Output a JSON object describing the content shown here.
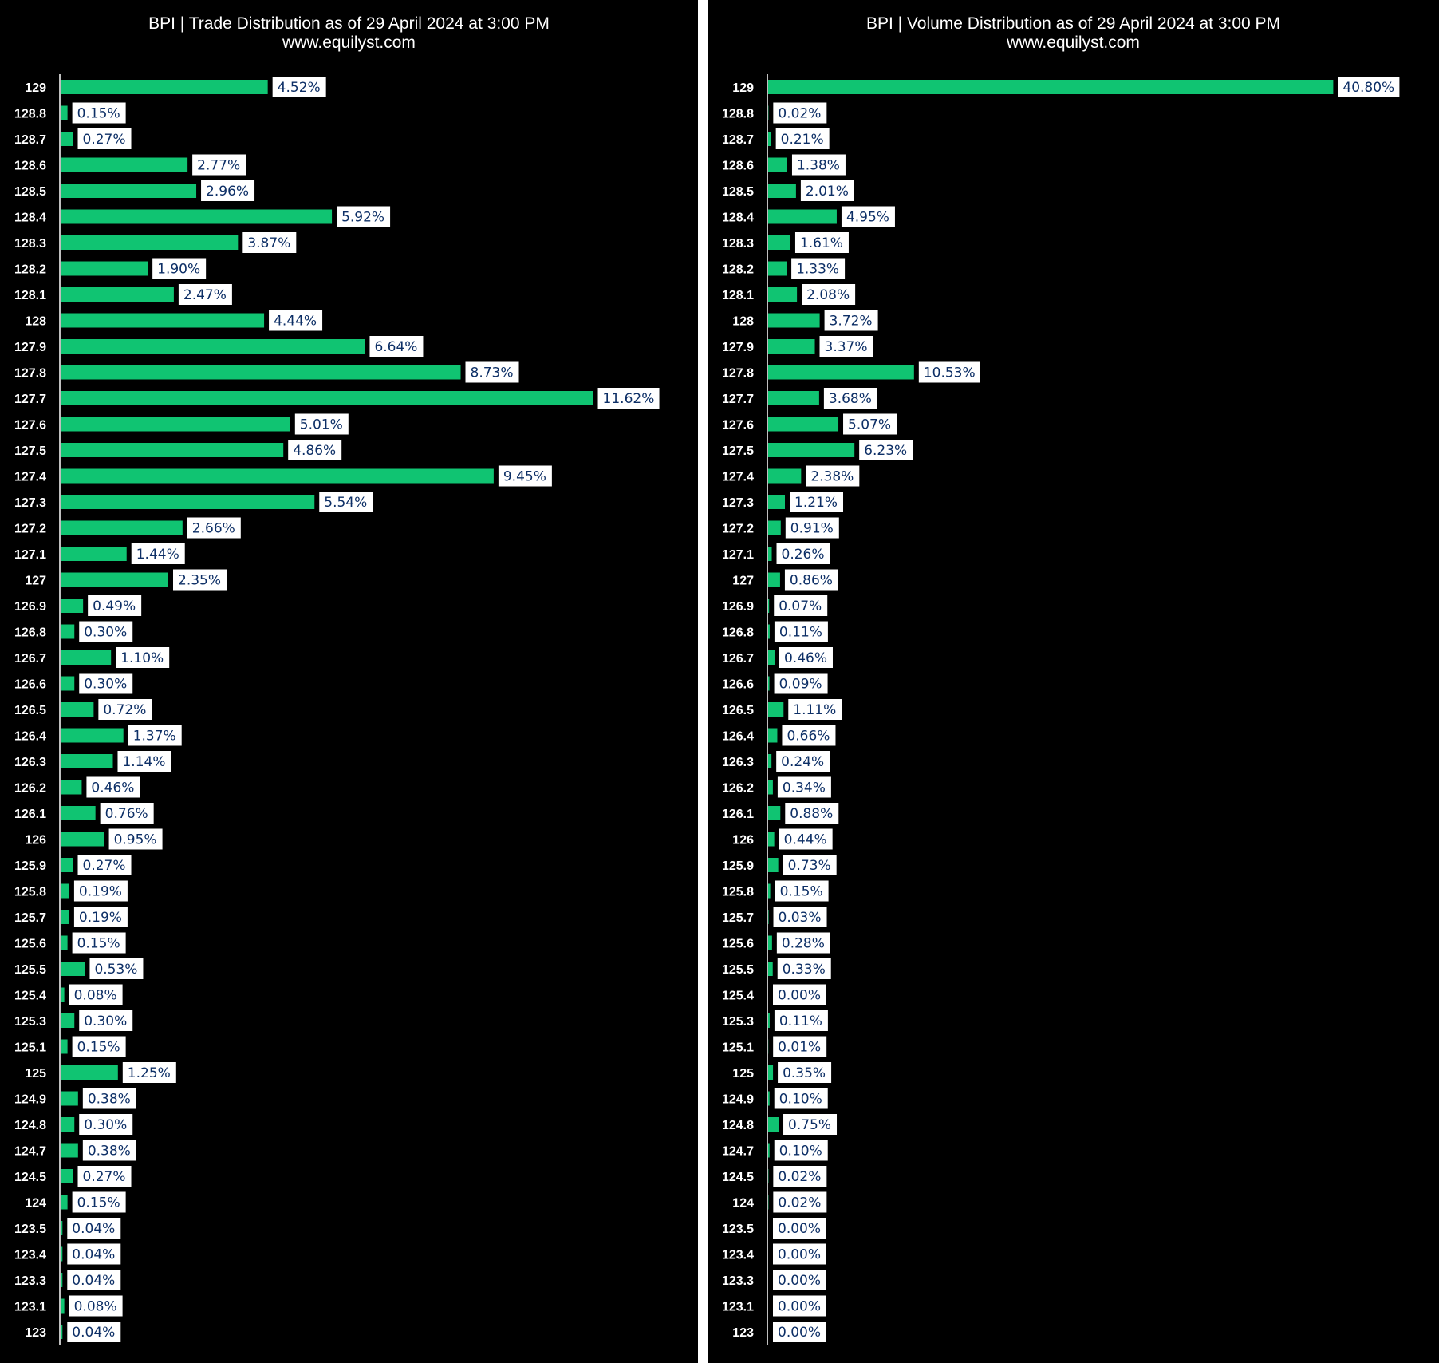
{
  "chart_data": [
    {
      "type": "bar",
      "orientation": "horizontal",
      "title": "BPI | Trade Distribution as of 29 April 2024 at 3:00 PM",
      "subtitle": "www.equilyst.com",
      "categories": [
        "129",
        "128.8",
        "128.7",
        "128.6",
        "128.5",
        "128.4",
        "128.3",
        "128.2",
        "128.1",
        "128",
        "127.9",
        "127.8",
        "127.7",
        "127.6",
        "127.5",
        "127.4",
        "127.3",
        "127.2",
        "127.1",
        "127",
        "126.9",
        "126.8",
        "126.7",
        "126.6",
        "126.5",
        "126.4",
        "126.3",
        "126.2",
        "126.1",
        "126",
        "125.9",
        "125.8",
        "125.7",
        "125.6",
        "125.5",
        "125.4",
        "125.3",
        "125.1",
        "125",
        "124.9",
        "124.8",
        "124.7",
        "124.5",
        "124",
        "123.5",
        "123.4",
        "123.3",
        "123.1",
        "123"
      ],
      "values": [
        4.52,
        0.15,
        0.27,
        2.77,
        2.96,
        5.92,
        3.87,
        1.9,
        2.47,
        4.44,
        6.64,
        8.73,
        11.62,
        5.01,
        4.86,
        9.45,
        5.54,
        2.66,
        1.44,
        2.35,
        0.49,
        0.3,
        1.1,
        0.3,
        0.72,
        1.37,
        1.14,
        0.46,
        0.76,
        0.95,
        0.27,
        0.19,
        0.19,
        0.15,
        0.53,
        0.08,
        0.3,
        0.15,
        1.25,
        0.38,
        0.3,
        0.38,
        0.27,
        0.15,
        0.04,
        0.04,
        0.04,
        0.08,
        0.04
      ],
      "labels": [
        "4.52%",
        "0.15%",
        "0.27%",
        "2.77%",
        "2.96%",
        "5.92%",
        "3.87%",
        "1.90%",
        "2.47%",
        "4.44%",
        "6.64%",
        "8.73%",
        "11.62%",
        "5.01%",
        "4.86%",
        "9.45%",
        "5.54%",
        "2.66%",
        "1.44%",
        "2.35%",
        "0.49%",
        "0.30%",
        "1.10%",
        "0.30%",
        "0.72%",
        "1.37%",
        "1.14%",
        "0.46%",
        "0.76%",
        "0.95%",
        "0.27%",
        "0.19%",
        "0.19%",
        "0.15%",
        "0.53%",
        "0.08%",
        "0.30%",
        "0.15%",
        "1.25%",
        "0.38%",
        "0.30%",
        "0.38%",
        "0.27%",
        "0.15%",
        "0.04%",
        "0.04%",
        "0.04%",
        "0.08%",
        "0.04%"
      ],
      "xlim": [
        0,
        14.1
      ],
      "bar_color": "#10c472",
      "background": "#000000",
      "label_box_color": "#ffffff",
      "label_text_color": "#0d2f66",
      "grid": false,
      "legend": "none"
    },
    {
      "type": "bar",
      "orientation": "horizontal",
      "title": "BPI | Volume Distribution as of 29 April 2024 at 3:00 PM",
      "subtitle": "www.equilyst.com",
      "categories": [
        "129",
        "128.8",
        "128.7",
        "128.6",
        "128.5",
        "128.4",
        "128.3",
        "128.2",
        "128.1",
        "128",
        "127.9",
        "127.8",
        "127.7",
        "127.6",
        "127.5",
        "127.4",
        "127.3",
        "127.2",
        "127.1",
        "127",
        "126.9",
        "126.8",
        "126.7",
        "126.6",
        "126.5",
        "126.4",
        "126.3",
        "126.2",
        "126.1",
        "126",
        "125.9",
        "125.8",
        "125.7",
        "125.6",
        "125.5",
        "125.4",
        "125.3",
        "125.1",
        "125",
        "124.9",
        "124.8",
        "124.7",
        "124.5",
        "124",
        "123.5",
        "123.4",
        "123.3",
        "123.1",
        "123"
      ],
      "values": [
        40.8,
        0.02,
        0.21,
        1.38,
        2.01,
        4.95,
        1.61,
        1.33,
        2.08,
        3.72,
        3.37,
        10.53,
        3.68,
        5.07,
        6.23,
        2.38,
        1.21,
        0.91,
        0.26,
        0.86,
        0.07,
        0.11,
        0.46,
        0.09,
        1.11,
        0.66,
        0.24,
        0.34,
        0.88,
        0.44,
        0.73,
        0.15,
        0.03,
        0.28,
        0.33,
        0.0,
        0.11,
        0.01,
        0.35,
        0.1,
        0.75,
        0.1,
        0.02,
        0.02,
        0.0,
        0.0,
        0.0,
        0.0,
        0.0
      ],
      "labels": [
        "40.80%",
        "0.02%",
        "0.21%",
        "1.38%",
        "2.01%",
        "4.95%",
        "1.61%",
        "1.33%",
        "2.08%",
        "3.72%",
        "3.37%",
        "10.53%",
        "3.68%",
        "5.07%",
        "6.23%",
        "2.38%",
        "1.21%",
        "0.91%",
        "0.26%",
        "0.86%",
        "0.07%",
        "0.11%",
        "0.46%",
        "0.09%",
        "1.11%",
        "0.66%",
        "0.24%",
        "0.34%",
        "0.88%",
        "0.44%",
        "0.73%",
        "0.15%",
        "0.03%",
        "0.28%",
        "0.33%",
        "0.00%",
        "0.11%",
        "0.01%",
        "0.35%",
        "0.10%",
        "0.75%",
        "0.10%",
        "0.02%",
        "0.02%",
        "0.00%",
        "0.00%",
        "0.00%",
        "0.00%",
        "0.00%"
      ],
      "xlim": [
        0,
        45.5
      ],
      "bar_color": "#10c472",
      "background": "#000000",
      "label_box_color": "#ffffff",
      "label_text_color": "#0d2f66",
      "grid": false,
      "legend": "none"
    }
  ]
}
